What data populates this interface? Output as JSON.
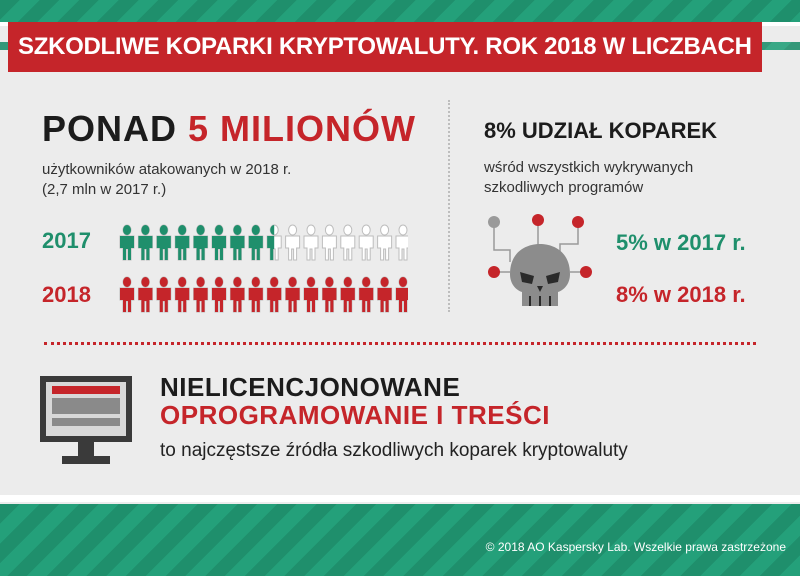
{
  "title": "SZKODLIWE KOPARKI KRYPTOWALUTY. ROK 2018 W LICZBACH",
  "left": {
    "headline_prefix": "PONAD",
    "headline_highlight": "5 MILIONÓW",
    "subtitle_line1": "użytkowników atakowanych w 2018 r.",
    "subtitle_line2": "(2,7 mln w 2017 r.)",
    "rows": [
      {
        "year": "2017",
        "filled": 8.5,
        "total": 16,
        "color": "#1f8f6c"
      },
      {
        "year": "2018",
        "filled": 16,
        "total": 16,
        "color": "#c5252a"
      }
    ]
  },
  "right": {
    "title": "8% UDZIAŁ KOPAREK",
    "subtitle_line1": "wśród wszystkich wykrywanych",
    "subtitle_line2": "szkodliwych programów",
    "stat_2017": "5% w 2017 r.",
    "stat_2018": "8% w 2018 r."
  },
  "bottom": {
    "line1": "NIELICENCJONOWANE",
    "line2": "OPROGRAMOWANIE I TREŚCI",
    "line3": "to najczęstsze źródła szkodliwych koparek kryptowaluty"
  },
  "footer": "© 2018 AO Kaspersky Lab. Wszelkie prawa zastrzeżone",
  "colors": {
    "red": "#c5252a",
    "green": "#1f8f6c",
    "gray": "#bdbdbd"
  },
  "icons": [
    "person-icon",
    "skull-icon",
    "monitor-icon"
  ]
}
